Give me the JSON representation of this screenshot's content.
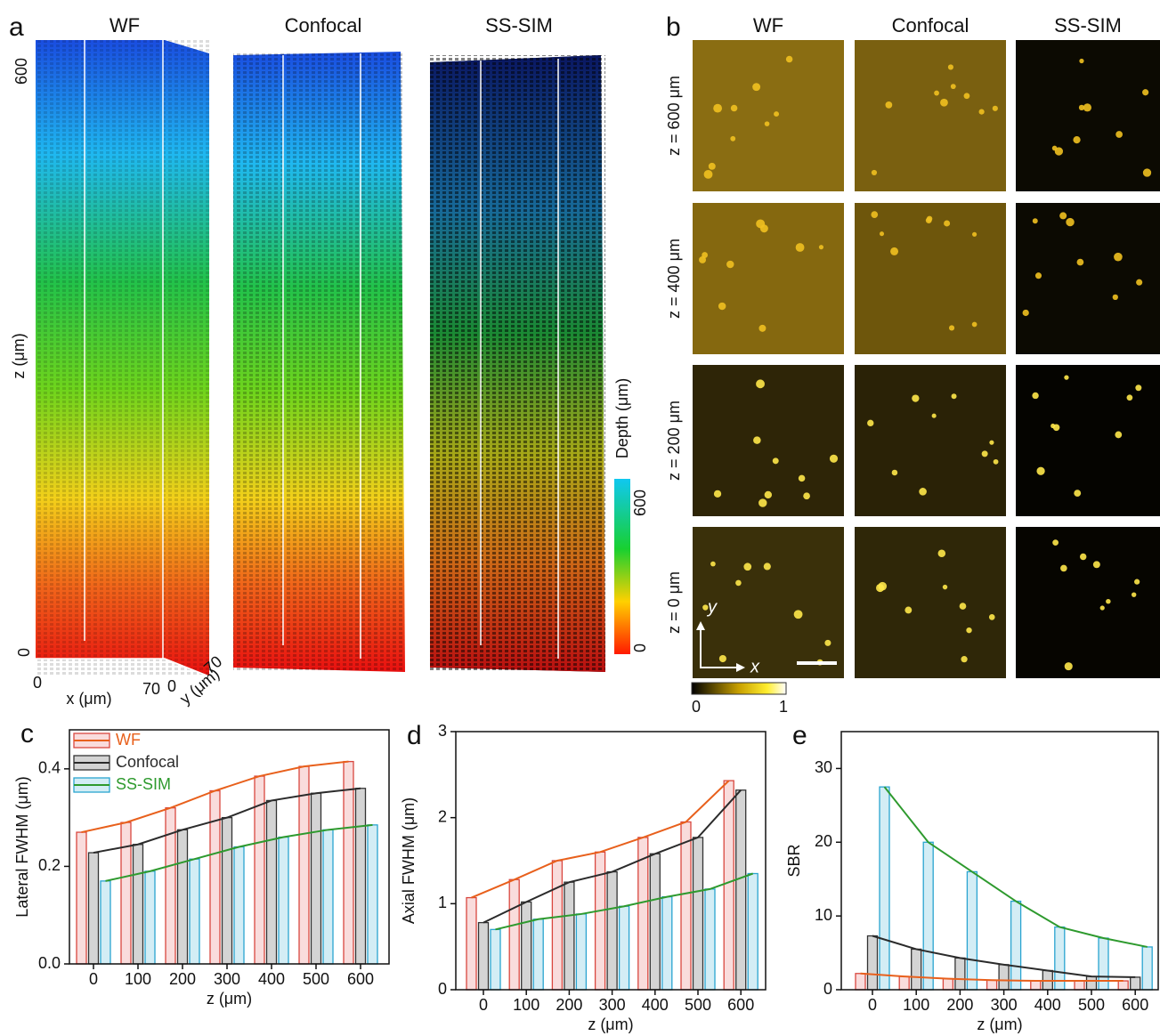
{
  "panel_a": {
    "label": "a",
    "columns": [
      "WF",
      "Confocal",
      "SS-SIM"
    ],
    "z_top": 600,
    "z_bottom": 0,
    "z_label": "z (μm)",
    "x_start": 0,
    "x_label": "x (μm)",
    "x_end": 70,
    "y_start": 0,
    "y_label": "y (μm)",
    "y_end": 70,
    "colorbar_title": "Depth (μm)",
    "colorbar_max": 600,
    "colorbar_min": 0
  },
  "panel_b": {
    "label": "b",
    "columns": [
      "WF",
      "Confocal",
      "SS-SIM"
    ],
    "rows": [
      "z = 600 μm",
      "z = 400 μm",
      "z = 200 μm",
      "z = 0 μm"
    ],
    "axis_y": "y",
    "axis_x": "x",
    "colorbar_min": 0,
    "colorbar_max": 1
  },
  "chart_data": [
    {
      "type": "bar",
      "panel_label": "c",
      "y_label": "Lateral FWHM (μm)",
      "x_label": "z (μm)",
      "categories": [
        0,
        100,
        200,
        300,
        400,
        500,
        600
      ],
      "ylim": [
        0,
        0.48
      ],
      "yticks": [
        {
          "value": 0,
          "label": "0.0"
        },
        0.2,
        0.4
      ],
      "legend": "upper left",
      "series": [
        {
          "name": "WF",
          "color": "#e8601c",
          "fill": "#f9dcdc",
          "edge": "#d9473f",
          "values": [
            0.27,
            0.29,
            0.32,
            0.355,
            0.385,
            0.405,
            0.415
          ]
        },
        {
          "name": "Confocal",
          "color": "#2b2b2b",
          "fill": "#d4d4d4",
          "edge": "#333333",
          "values": [
            0.228,
            0.245,
            0.275,
            0.3,
            0.335,
            0.35,
            0.36
          ]
        },
        {
          "name": "SS-SIM",
          "color": "#2e9a2e",
          "fill": "#d3edf5",
          "edge": "#2aa4d0",
          "values": [
            0.17,
            0.19,
            0.215,
            0.24,
            0.26,
            0.275,
            0.285
          ]
        }
      ]
    },
    {
      "type": "bar",
      "panel_label": "d",
      "y_label": "Axial FWHM (μm)",
      "x_label": "z (μm)",
      "categories": [
        0,
        100,
        200,
        300,
        400,
        500,
        600
      ],
      "ylim": [
        0,
        3
      ],
      "yticks": [
        0,
        1,
        2,
        3
      ],
      "series": [
        {
          "name": "WF",
          "color": "#e8601c",
          "fill": "#f9dcdc",
          "edge": "#d9473f",
          "values": [
            1.07,
            1.28,
            1.5,
            1.6,
            1.77,
            1.95,
            2.43
          ]
        },
        {
          "name": "Confocal",
          "color": "#2b2b2b",
          "fill": "#d4d4d4",
          "edge": "#333333",
          "values": [
            0.78,
            1.02,
            1.25,
            1.37,
            1.58,
            1.77,
            2.32
          ]
        },
        {
          "name": "SS-SIM",
          "color": "#2e9a2e",
          "fill": "#d3edf5",
          "edge": "#2aa4d0",
          "values": [
            0.7,
            0.82,
            0.88,
            0.97,
            1.08,
            1.17,
            1.35
          ]
        }
      ]
    },
    {
      "type": "bar",
      "panel_label": "e",
      "y_label": "SBR",
      "x_label": "z (μm)",
      "categories": [
        0,
        100,
        200,
        300,
        400,
        500,
        600
      ],
      "ylim": [
        0,
        35
      ],
      "yticks": [
        0,
        10,
        20,
        30
      ],
      "series": [
        {
          "name": "WF",
          "color": "#e8601c",
          "fill": "#f9dcdc",
          "edge": "#d9473f",
          "values": [
            2.2,
            1.8,
            1.5,
            1.3,
            1.2,
            1.2,
            1.2
          ]
        },
        {
          "name": "Confocal",
          "color": "#2b2b2b",
          "fill": "#d4d4d4",
          "edge": "#333333",
          "values": [
            7.3,
            5.5,
            4.3,
            3.4,
            2.6,
            1.8,
            1.7
          ]
        },
        {
          "name": "SS-SIM",
          "color": "#2e9a2e",
          "fill": "#d3edf5",
          "edge": "#2aa4d0",
          "values": [
            27.5,
            20,
            16,
            12,
            8.5,
            7,
            5.8
          ]
        }
      ]
    }
  ]
}
